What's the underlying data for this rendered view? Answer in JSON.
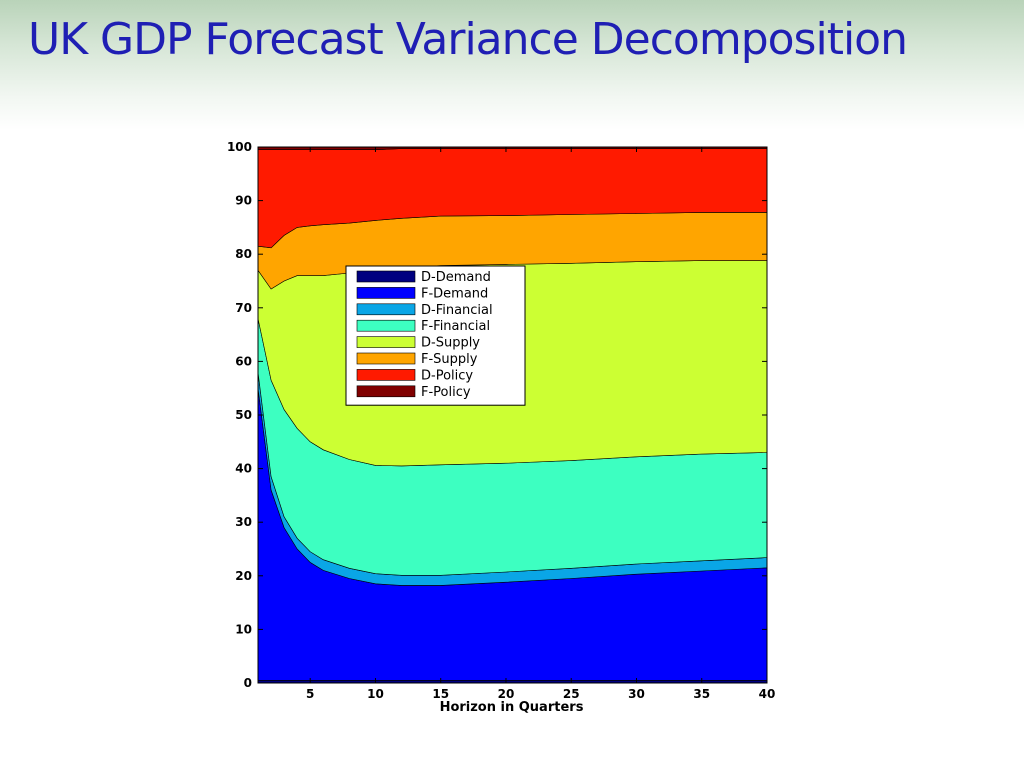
{
  "slide": {
    "title": "UK GDP Forecast Variance Decomposition"
  },
  "chart_data": {
    "type": "area",
    "title": "",
    "xlabel": "Horizon in Quarters",
    "ylabel": "",
    "xlim": [
      1,
      40
    ],
    "ylim": [
      0,
      100
    ],
    "xticks": [
      5,
      10,
      15,
      20,
      25,
      30,
      35,
      40
    ],
    "yticks": [
      0,
      10,
      20,
      30,
      40,
      50,
      60,
      70,
      80,
      90,
      100
    ],
    "stacked": true,
    "grid": false,
    "legend_position": "inside upper-left",
    "x": [
      1,
      2,
      3,
      4,
      5,
      6,
      8,
      10,
      12,
      15,
      20,
      25,
      30,
      35,
      40
    ],
    "series": [
      {
        "name": "D-Demand",
        "color": "#000080",
        "values": [
          0.5,
          0.5,
          0.5,
          0.5,
          0.5,
          0.5,
          0.5,
          0.5,
          0.5,
          0.5,
          0.5,
          0.5,
          0.5,
          0.5,
          0.5
        ]
      },
      {
        "name": "F-Demand",
        "color": "#0000ff",
        "values": [
          54.5,
          35.5,
          28.5,
          24.5,
          22.0,
          20.5,
          19.0,
          18.0,
          17.7,
          17.7,
          18.3,
          19.0,
          19.8,
          20.4,
          21.0
        ]
      },
      {
        "name": "D-Financial",
        "color": "#0aa6e6",
        "values": [
          3.0,
          2.5,
          2.0,
          2.0,
          2.0,
          2.0,
          1.9,
          1.9,
          1.9,
          1.9,
          1.9,
          1.9,
          1.9,
          1.9,
          1.9
        ]
      },
      {
        "name": "F-Financial",
        "color": "#3dffc1",
        "values": [
          10.0,
          18.0,
          20.0,
          20.5,
          20.5,
          20.5,
          20.3,
          20.2,
          20.4,
          20.6,
          20.3,
          20.1,
          20.0,
          19.9,
          19.6
        ]
      },
      {
        "name": "D-Supply",
        "color": "#ccff33",
        "values": [
          9.0,
          17.0,
          24.0,
          28.5,
          31.0,
          32.5,
          34.8,
          36.4,
          36.9,
          37.2,
          37.1,
          36.8,
          36.4,
          36.1,
          35.8
        ]
      },
      {
        "name": "F-Supply",
        "color": "#ffa500",
        "values": [
          4.5,
          7.7,
          8.5,
          9.0,
          9.3,
          9.5,
          9.3,
          9.3,
          9.3,
          9.2,
          9.1,
          9.1,
          9.0,
          9.0,
          9.0
        ]
      },
      {
        "name": "D-Policy",
        "color": "#ff1a00",
        "values": [
          18.0,
          18.3,
          16.0,
          14.5,
          14.2,
          14.0,
          13.7,
          13.2,
          13.0,
          12.6,
          12.5,
          12.3,
          12.1,
          11.9,
          11.9
        ]
      },
      {
        "name": "F-Policy",
        "color": "#800000",
        "values": [
          0.5,
          0.5,
          0.5,
          0.5,
          0.5,
          0.5,
          0.5,
          0.5,
          0.3,
          0.3,
          0.3,
          0.3,
          0.3,
          0.3,
          0.3
        ]
      }
    ]
  }
}
